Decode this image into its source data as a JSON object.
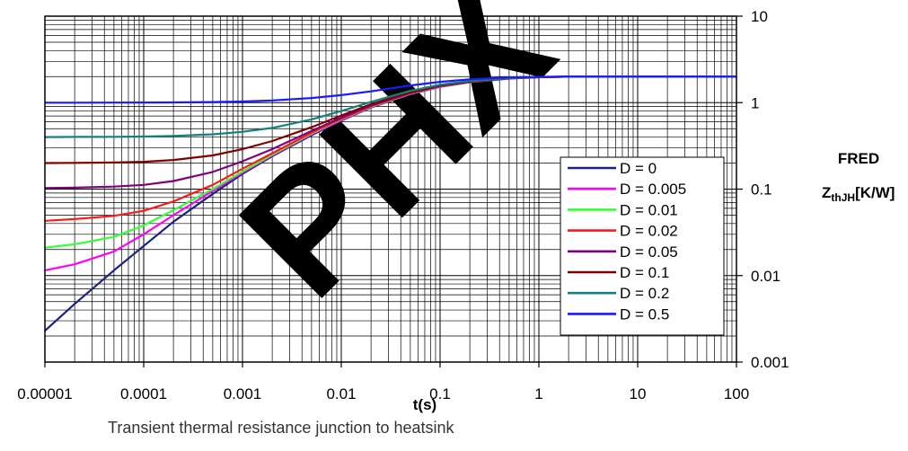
{
  "caption": "Transient thermal resistance junction to heatsink",
  "watermark": "PHX",
  "chart_data": {
    "type": "line",
    "xscale": "log",
    "yscale": "log",
    "xlim": [
      1e-05,
      100
    ],
    "ylim": [
      0.001,
      10
    ],
    "grid": true,
    "legend_position": "right",
    "xlabel": "t(s)",
    "ylabel_line1": "FRED",
    "ylabel_line2_main": "Z",
    "ylabel_line2_sub": "thJH",
    "ylabel_line2_unit": "[K/W]",
    "xticks": [
      {
        "value": 1e-05,
        "label": "0.00001"
      },
      {
        "value": 0.0001,
        "label": "0.0001"
      },
      {
        "value": 0.001,
        "label": "0.001"
      },
      {
        "value": 0.01,
        "label": "0.01"
      },
      {
        "value": 0.1,
        "label": "0.1"
      },
      {
        "value": 1,
        "label": "1"
      },
      {
        "value": 10,
        "label": "10"
      },
      {
        "value": 100,
        "label": "100"
      }
    ],
    "yticks": [
      {
        "value": 10,
        "label": "10"
      },
      {
        "value": 1,
        "label": "1"
      },
      {
        "value": 0.1,
        "label": "0.1"
      },
      {
        "value": 0.01,
        "label": "0.01"
      },
      {
        "value": 0.001,
        "label": "0.001"
      }
    ],
    "series": [
      {
        "name": "D = 0",
        "color": "#1a237e",
        "points": [
          [
            1e-05,
            0.0023
          ],
          [
            2e-05,
            0.0047
          ],
          [
            5e-05,
            0.0115
          ],
          [
            0.0001,
            0.022
          ],
          [
            0.0002,
            0.042
          ],
          [
            0.0005,
            0.088
          ],
          [
            0.001,
            0.15
          ],
          [
            0.002,
            0.24
          ],
          [
            0.005,
            0.42
          ],
          [
            0.01,
            0.62
          ],
          [
            0.02,
            0.88
          ],
          [
            0.05,
            1.25
          ],
          [
            0.1,
            1.52
          ],
          [
            0.2,
            1.72
          ],
          [
            0.5,
            1.9
          ],
          [
            1,
            1.97
          ],
          [
            2,
            2.0
          ],
          [
            10,
            2.0
          ],
          [
            100,
            2.0
          ]
        ]
      },
      {
        "name": "D = 0.005",
        "color": "#ff00ff",
        "points": [
          [
            1e-05,
            0.0115
          ],
          [
            2e-05,
            0.0135
          ],
          [
            5e-05,
            0.019
          ],
          [
            0.0001,
            0.03
          ],
          [
            0.0002,
            0.05
          ],
          [
            0.0005,
            0.095
          ],
          [
            0.001,
            0.155
          ],
          [
            0.002,
            0.245
          ],
          [
            0.005,
            0.43
          ],
          [
            0.01,
            0.63
          ],
          [
            0.02,
            0.89
          ],
          [
            0.05,
            1.26
          ],
          [
            0.1,
            1.53
          ],
          [
            0.2,
            1.73
          ],
          [
            0.5,
            1.9
          ],
          [
            1,
            1.97
          ],
          [
            2,
            2.0
          ],
          [
            10,
            2.0
          ],
          [
            100,
            2.0
          ]
        ]
      },
      {
        "name": "D = 0.01",
        "color": "#33ff33",
        "points": [
          [
            1e-05,
            0.021
          ],
          [
            2e-05,
            0.023
          ],
          [
            5e-05,
            0.028
          ],
          [
            0.0001,
            0.038
          ],
          [
            0.0002,
            0.057
          ],
          [
            0.0005,
            0.1
          ],
          [
            0.001,
            0.16
          ],
          [
            0.002,
            0.25
          ],
          [
            0.005,
            0.44
          ],
          [
            0.01,
            0.64
          ],
          [
            0.02,
            0.9
          ],
          [
            0.05,
            1.27
          ],
          [
            0.1,
            1.54
          ],
          [
            0.2,
            1.73
          ],
          [
            0.5,
            1.9
          ],
          [
            1,
            1.97
          ],
          [
            2,
            2.0
          ],
          [
            10,
            2.0
          ],
          [
            100,
            2.0
          ]
        ]
      },
      {
        "name": "D = 0.02",
        "color": "#ff1a1a",
        "points": [
          [
            1e-05,
            0.043
          ],
          [
            2e-05,
            0.045
          ],
          [
            5e-05,
            0.049
          ],
          [
            0.0001,
            0.056
          ],
          [
            0.0002,
            0.072
          ],
          [
            0.0005,
            0.112
          ],
          [
            0.001,
            0.172
          ],
          [
            0.002,
            0.26
          ],
          [
            0.005,
            0.45
          ],
          [
            0.01,
            0.65
          ],
          [
            0.02,
            0.91
          ],
          [
            0.05,
            1.28
          ],
          [
            0.1,
            1.55
          ],
          [
            0.2,
            1.74
          ],
          [
            0.5,
            1.9
          ],
          [
            1,
            1.97
          ],
          [
            2,
            2.0
          ],
          [
            10,
            2.0
          ],
          [
            100,
            2.0
          ]
        ]
      },
      {
        "name": "D = 0.05",
        "color": "#800080",
        "points": [
          [
            1e-05,
            0.103
          ],
          [
            2e-05,
            0.104
          ],
          [
            5e-05,
            0.107
          ],
          [
            0.0001,
            0.112
          ],
          [
            0.0002,
            0.124
          ],
          [
            0.0005,
            0.158
          ],
          [
            0.001,
            0.21
          ],
          [
            0.002,
            0.29
          ],
          [
            0.005,
            0.47
          ],
          [
            0.01,
            0.67
          ],
          [
            0.02,
            0.93
          ],
          [
            0.05,
            1.3
          ],
          [
            0.1,
            1.56
          ],
          [
            0.2,
            1.75
          ],
          [
            0.5,
            1.91
          ],
          [
            1,
            1.97
          ],
          [
            2,
            2.0
          ],
          [
            10,
            2.0
          ],
          [
            100,
            2.0
          ]
        ]
      },
      {
        "name": "D = 0.1",
        "color": "#800000",
        "points": [
          [
            1e-05,
            0.2
          ],
          [
            2e-05,
            0.201
          ],
          [
            5e-05,
            0.203
          ],
          [
            0.0001,
            0.207
          ],
          [
            0.0002,
            0.217
          ],
          [
            0.0005,
            0.245
          ],
          [
            0.001,
            0.29
          ],
          [
            0.002,
            0.36
          ],
          [
            0.005,
            0.52
          ],
          [
            0.01,
            0.71
          ],
          [
            0.02,
            0.96
          ],
          [
            0.05,
            1.32
          ],
          [
            0.1,
            1.58
          ],
          [
            0.2,
            1.76
          ],
          [
            0.5,
            1.91
          ],
          [
            1,
            1.97
          ],
          [
            2,
            2.0
          ],
          [
            10,
            2.0
          ],
          [
            100,
            2.0
          ]
        ]
      },
      {
        "name": "D = 0.2",
        "color": "#138080",
        "points": [
          [
            1e-05,
            0.4
          ],
          [
            2e-05,
            0.401
          ],
          [
            5e-05,
            0.402
          ],
          [
            0.0001,
            0.405
          ],
          [
            0.0002,
            0.412
          ],
          [
            0.0005,
            0.43
          ],
          [
            0.001,
            0.46
          ],
          [
            0.002,
            0.51
          ],
          [
            0.005,
            0.64
          ],
          [
            0.01,
            0.8
          ],
          [
            0.02,
            1.02
          ],
          [
            0.05,
            1.37
          ],
          [
            0.1,
            1.61
          ],
          [
            0.2,
            1.78
          ],
          [
            0.5,
            1.92
          ],
          [
            1,
            1.98
          ],
          [
            2,
            2.0
          ],
          [
            10,
            2.0
          ],
          [
            100,
            2.0
          ]
        ]
      },
      {
        "name": "D = 0.5",
        "color": "#1a1aff",
        "points": [
          [
            1e-05,
            1.0
          ],
          [
            2e-05,
            1.0
          ],
          [
            5e-05,
            1.001
          ],
          [
            0.0001,
            1.003
          ],
          [
            0.0002,
            1.006
          ],
          [
            0.0005,
            1.015
          ],
          [
            0.001,
            1.03
          ],
          [
            0.002,
            1.06
          ],
          [
            0.005,
            1.13
          ],
          [
            0.01,
            1.22
          ],
          [
            0.02,
            1.35
          ],
          [
            0.05,
            1.58
          ],
          [
            0.1,
            1.74
          ],
          [
            0.2,
            1.86
          ],
          [
            0.5,
            1.96
          ],
          [
            1,
            1.99
          ],
          [
            2,
            2.0
          ],
          [
            10,
            2.0
          ],
          [
            100,
            2.0
          ]
        ]
      }
    ]
  }
}
